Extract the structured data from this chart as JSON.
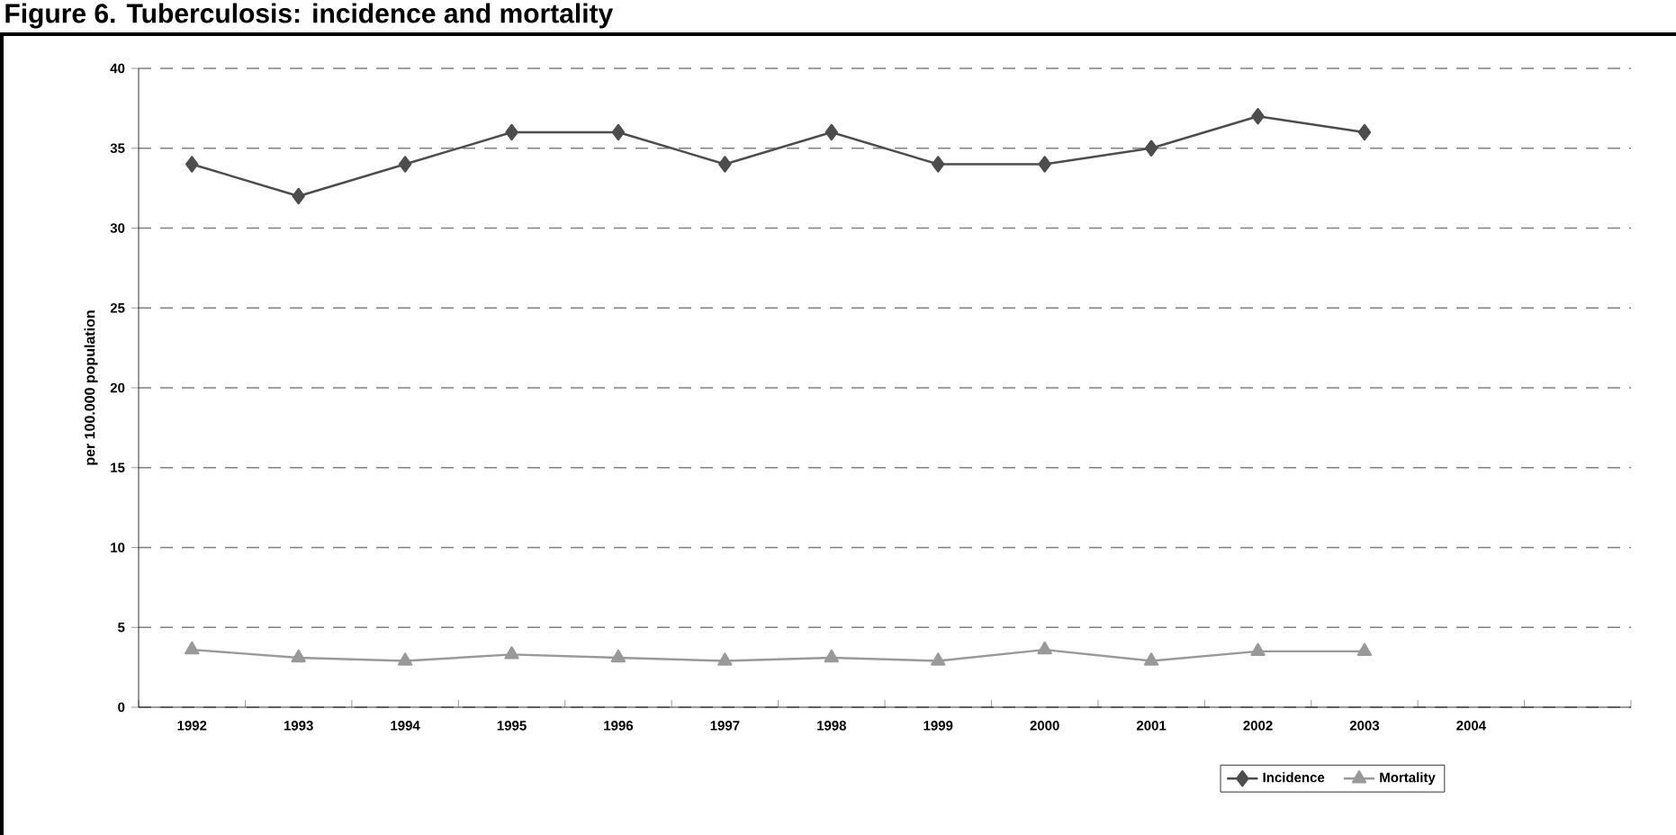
{
  "chart_data": {
    "type": "line",
    "title": "Figure 6. Tuberculosis: incidence and mortality",
    "ylabel": "per 100.000 population",
    "categories": [
      "1992",
      "1993",
      "1994",
      "1995",
      "1996",
      "1997",
      "1998",
      "1999",
      "2000",
      "2001",
      "2002",
      "2003",
      "2004",
      null
    ],
    "series": [
      {
        "name": "Incidence",
        "color": "#4d4d4d",
        "marker": "diamond",
        "values": [
          34,
          32,
          34,
          36,
          36,
          34,
          36,
          34,
          34,
          35,
          37,
          36,
          null,
          null
        ]
      },
      {
        "name": "Mortality",
        "color": "#999999",
        "marker": "triangle",
        "values": [
          3.6,
          3.1,
          2.9,
          3.3,
          3.1,
          2.9,
          3.1,
          2.9,
          3.6,
          2.9,
          3.5,
          3.5,
          null,
          null
        ]
      }
    ],
    "ylim": [
      0,
      40
    ],
    "yticks": [
      0,
      5,
      10,
      15,
      20,
      25,
      30,
      35,
      40
    ],
    "grid": "y",
    "legend": "bottom right",
    "line_style": "solid"
  }
}
